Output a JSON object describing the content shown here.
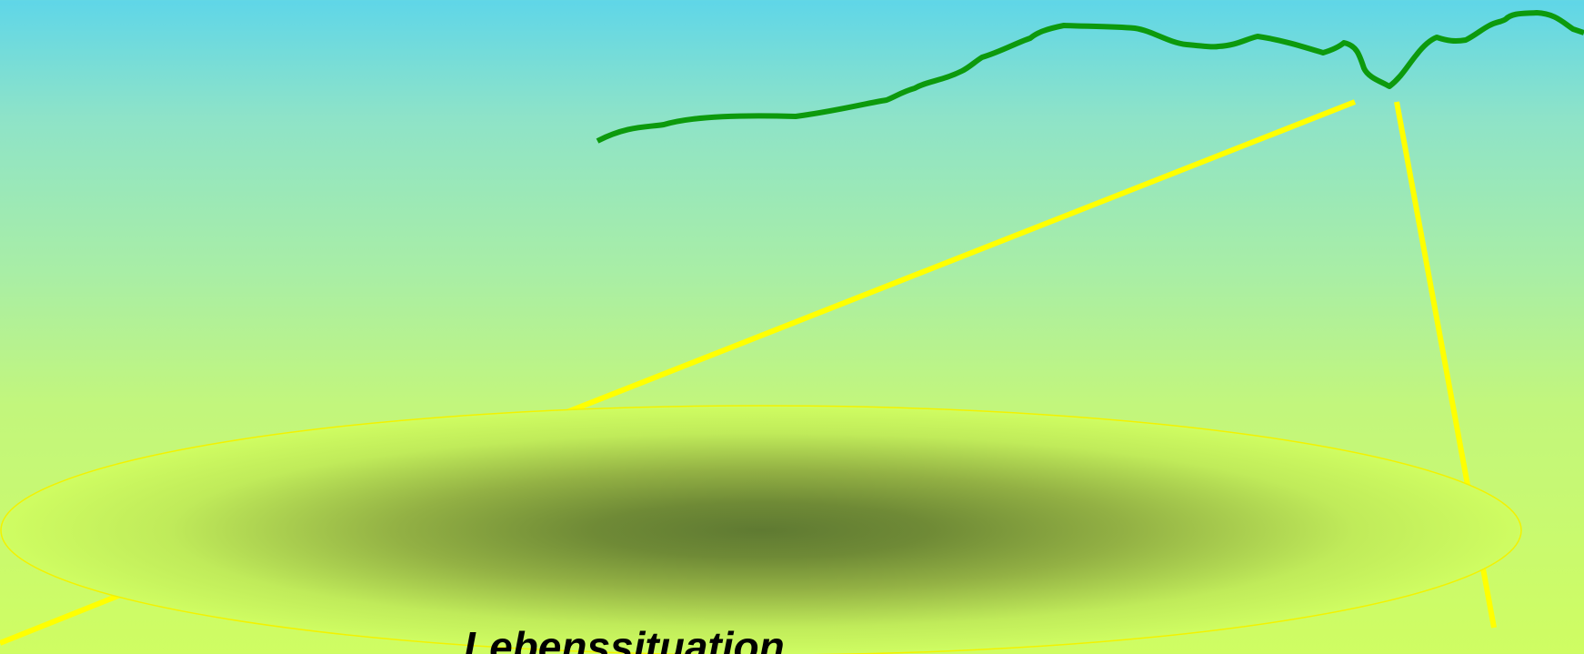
{
  "diagram": {
    "caption": "Lebenssituation",
    "colors": {
      "sky_top": "#5fd6e8",
      "sky_bottom": "#cffd62",
      "ridge_line": "#0d9a0d",
      "beam_lines": "#ffff00",
      "disc_center": "#5f7a32",
      "disc_edge": "#cffd62",
      "disc_outline": "#f2f200"
    },
    "shapes": [
      "ridge-line",
      "left-beam",
      "right-beam",
      "bottom-left-beam",
      "shaded-disc"
    ]
  }
}
